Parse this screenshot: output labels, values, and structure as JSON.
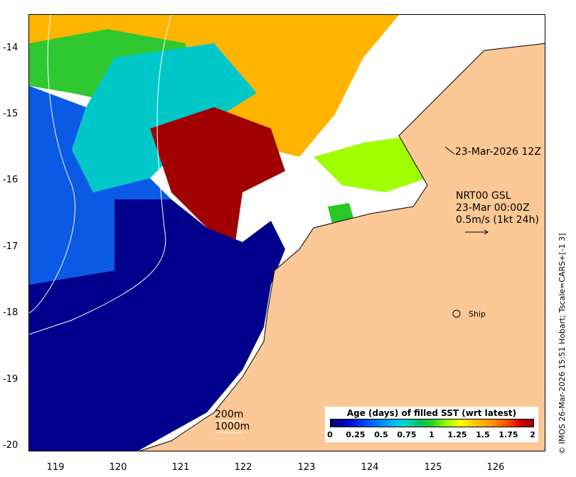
{
  "map": {
    "lat_ticks": [
      "-14",
      "-15",
      "-16",
      "-17",
      "-18",
      "-19",
      "-20"
    ],
    "lon_ticks": [
      "119",
      "120",
      "121",
      "122",
      "123",
      "124",
      "125",
      "126"
    ],
    "timestamp_label": "23-Mar-2026 12Z",
    "current_product": "NRT00 GSL",
    "current_time": "23-Mar 00:00Z",
    "current_scale": "0.5m/s (1kt 24h)",
    "ship_label": "Ship",
    "contour_200": "200m",
    "contour_1000": "1000m"
  },
  "legend": {
    "title": "Age (days) of filled SST (wrt latest)",
    "ticks": [
      "0",
      "0.25",
      "0.5",
      "0.75",
      "1",
      "1.25",
      "1.5",
      "1.75",
      "2"
    ],
    "range": [
      0,
      2
    ]
  },
  "credit": "© IMOS 26-Mar-2026 15:51 Hobart; Tscale=CARS+[-1 3]",
  "colors": {
    "land": "#fcc896",
    "deep_blue": "#00008c",
    "mid_blue": "#0a5ae6",
    "cyan": "#00c8c8",
    "green": "#28c828",
    "lime": "#a0ff00",
    "orange": "#ffb400",
    "dark_red": "#a00000"
  }
}
